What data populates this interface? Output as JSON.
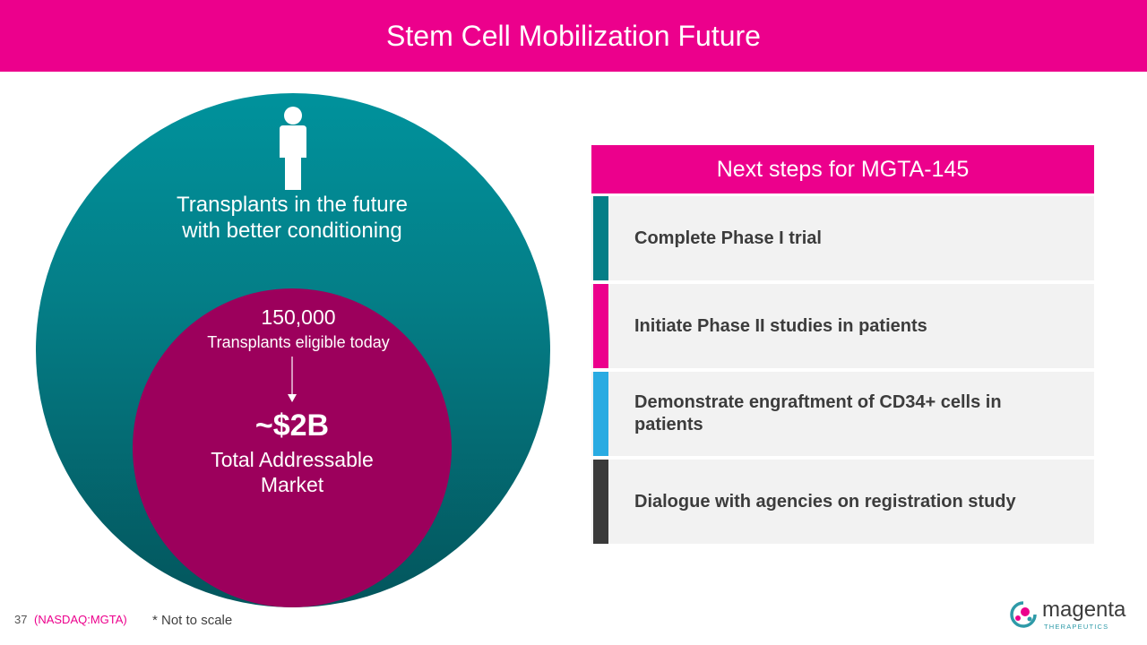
{
  "title": "Stem Cell Mobilization Future",
  "diagram": {
    "outer": {
      "label": "Transplants in the future with better conditioning",
      "color": "#047e87",
      "icon": "person-icon"
    },
    "inner": {
      "count": "150,000",
      "count_label": "Transplants eligible today",
      "market_value": "~$2B",
      "market_label": "Total Addressable Market",
      "color": "#9c005c"
    }
  },
  "next_steps": {
    "header": "Next steps for MGTA-145",
    "items": [
      {
        "label": "Complete Phase I trial",
        "accent": "#047e87"
      },
      {
        "label": "Initiate Phase II studies in patients",
        "accent": "#ec008c"
      },
      {
        "label": "Demonstrate engraftment of CD34+ cells in patients",
        "accent": "#29abe2"
      },
      {
        "label": "Dialogue with agencies on registration study",
        "accent": "#3a3a3a"
      }
    ]
  },
  "footer": {
    "page_number": "37",
    "ticker": "(NASDAQ:MGTA)",
    "note": "* Not to scale"
  },
  "logo": {
    "name": "magenta",
    "sub": "THERAPEUTICS"
  },
  "colors": {
    "brand": "#ec008c",
    "teal": "#047e87",
    "inner": "#9c005c"
  }
}
